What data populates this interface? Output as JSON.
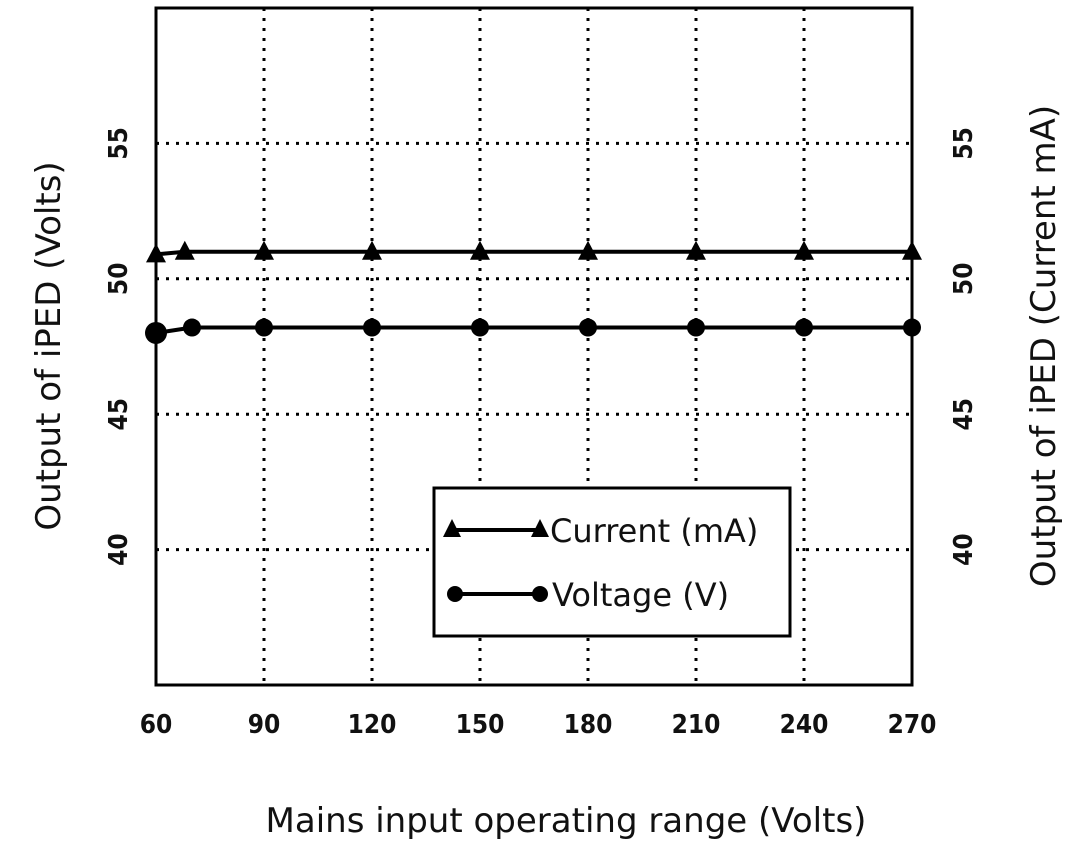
{
  "chart_data": {
    "type": "line",
    "xlabel": "Mains input operating range  (Volts)",
    "ylabel_left": "Output of iPED (Volts)",
    "ylabel_right": "Output of iPED (Current mA)",
    "x_ticks": [
      "60",
      "90",
      "120",
      "150",
      "180",
      "210",
      "240",
      "270"
    ],
    "y_ticks": [
      "40",
      "45",
      "50",
      "55"
    ],
    "xlim": [
      60,
      270
    ],
    "ylim": [
      35,
      60
    ],
    "grid": true,
    "legend_position": "bottom-right",
    "series": [
      {
        "name": "Current (mA)",
        "marker": "triangle",
        "color": "#000000",
        "x": [
          60,
          68,
          90,
          120,
          150,
          180,
          210,
          240,
          270
        ],
        "y": [
          50.9,
          51.0,
          51.0,
          51.0,
          51.0,
          51.0,
          51.0,
          51.0,
          51.0
        ]
      },
      {
        "name": "Voltage (V)",
        "marker": "circle",
        "color": "#000000",
        "x": [
          60,
          70,
          90,
          120,
          150,
          180,
          210,
          240,
          270
        ],
        "y": [
          48.0,
          48.2,
          48.2,
          48.2,
          48.2,
          48.2,
          48.2,
          48.2,
          48.2
        ]
      }
    ]
  }
}
